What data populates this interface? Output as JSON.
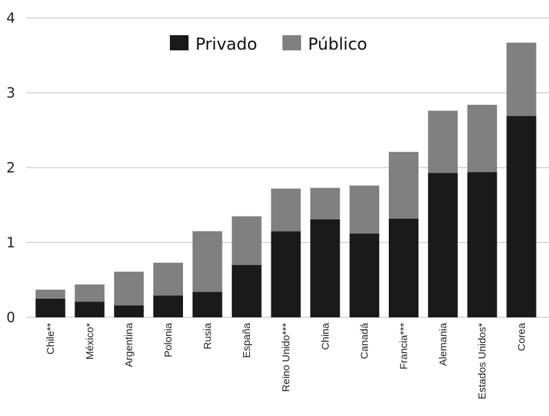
{
  "chart_data": {
    "type": "bar",
    "stacked": true,
    "categories": [
      "Chile**",
      "México*",
      "Argentina",
      "Polonia",
      "Rusia",
      "España",
      "Reino Unido***",
      "China",
      "Canadá",
      "Francia***",
      "Alemania",
      "Estados Unidos*",
      "Corea"
    ],
    "series": [
      {
        "name": "Privado",
        "color": "#1a1a1a",
        "values": [
          0.25,
          0.21,
          0.16,
          0.29,
          0.34,
          0.7,
          1.15,
          1.31,
          1.12,
          1.32,
          1.93,
          1.94,
          2.69
        ]
      },
      {
        "name": "Público",
        "color": "#808080",
        "values": [
          0.12,
          0.23,
          0.45,
          0.44,
          0.81,
          0.65,
          0.57,
          0.42,
          0.64,
          0.89,
          0.83,
          0.9,
          0.98
        ]
      }
    ],
    "ylim": [
      0,
      4
    ],
    "yticks": [
      "0",
      "1",
      "2",
      "3",
      "4"
    ],
    "grid": true,
    "legend_position": "top-center"
  }
}
